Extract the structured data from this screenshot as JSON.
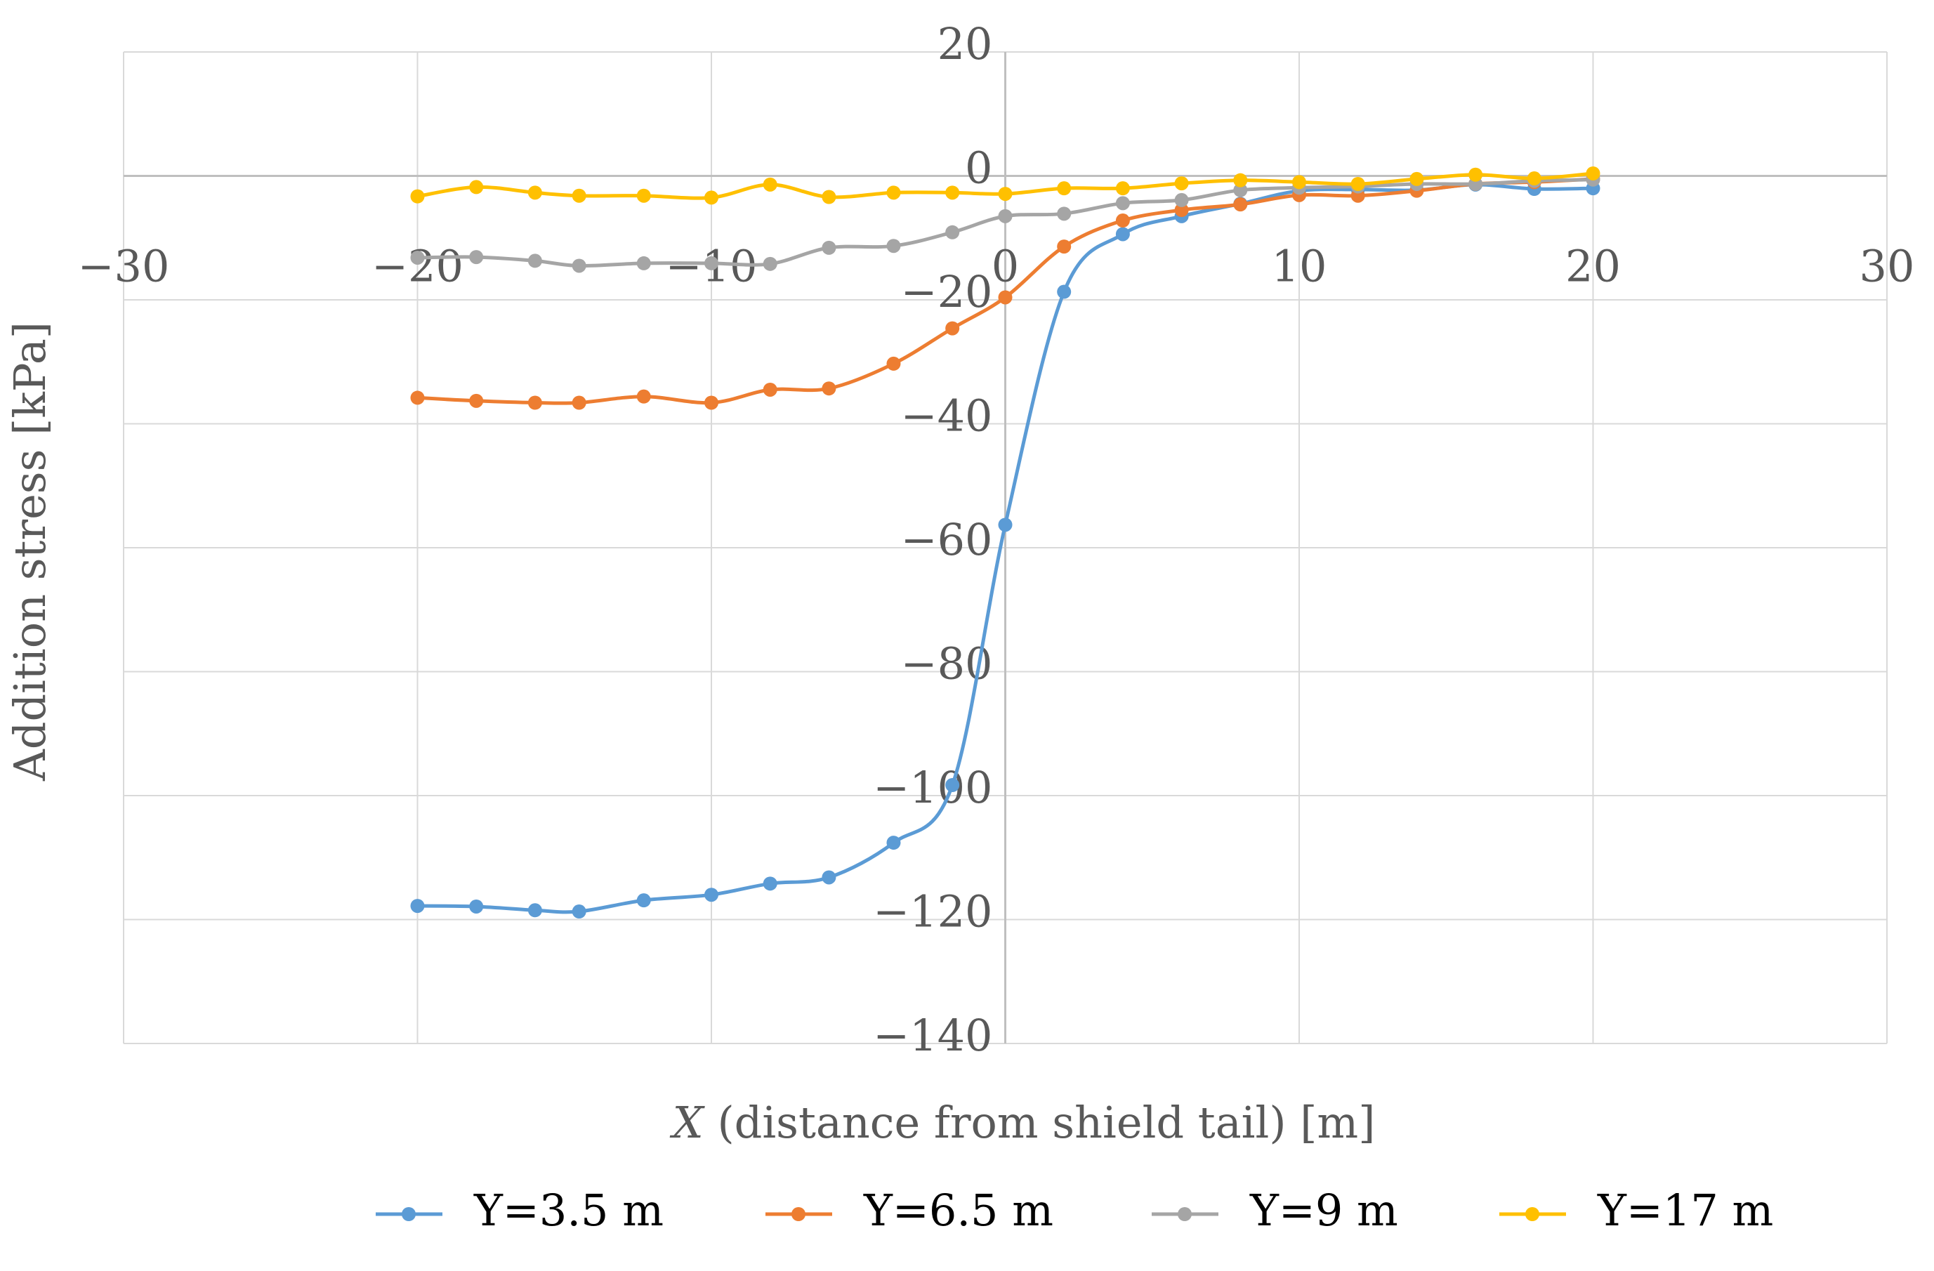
{
  "chart_data": {
    "type": "line",
    "title": "",
    "xlabel_italic": "X",
    "xlabel_rest": " (distance from shield tail) [m]",
    "ylabel": "Addition stress [kPa]",
    "xlim": [
      -30,
      30
    ],
    "ylim": [
      -140,
      20
    ],
    "x_ticks": [
      -30,
      -20,
      -10,
      0,
      10,
      20,
      30
    ],
    "y_ticks": [
      20,
      0,
      -20,
      -40,
      -60,
      -80,
      -100,
      -120,
      -140
    ],
    "x_tick_labels": [
      "−30",
      "−20",
      "−10",
      "0",
      "10",
      "20",
      "30"
    ],
    "y_tick_labels": [
      "20",
      "0",
      "−20",
      "−40",
      "−60",
      "−80",
      "−100",
      "−120",
      "−140"
    ],
    "grid": true,
    "legend_position": "bottom",
    "series": [
      {
        "name": "Y=3.5 m",
        "color": "#5B9BD5",
        "x": [
          -20,
          -18,
          -16,
          -14.5,
          -12.3,
          -10,
          -8,
          -6,
          -3.8,
          -1.8,
          0,
          2,
          4,
          6,
          8,
          10,
          12,
          14,
          16,
          18,
          20
        ],
        "y": [
          -117.8,
          -117.9,
          -118.5,
          -118.7,
          -116.9,
          -116,
          -114.2,
          -113.2,
          -107.6,
          -98.3,
          -56.3,
          -18.7,
          -9.4,
          -6.5,
          -4.5,
          -2.4,
          -2.2,
          -2.3,
          -1.4,
          -2.1,
          -2
        ]
      },
      {
        "name": "Y=6.5 m",
        "color": "#ED7D31",
        "x": [
          -20,
          -18,
          -16,
          -14.5,
          -12.3,
          -10,
          -8,
          -6,
          -3.8,
          -1.8,
          0,
          2,
          4,
          6,
          8,
          10,
          12,
          14,
          16,
          18,
          20
        ],
        "y": [
          -35.8,
          -36.3,
          -36.6,
          -36.6,
          -35.6,
          -36.6,
          -34.5,
          -34.3,
          -30.3,
          -24.6,
          -19.6,
          -11.4,
          -7.2,
          -5.5,
          -4.6,
          -3.1,
          -3.2,
          -2.4,
          -1.3,
          -1,
          -0.5
        ]
      },
      {
        "name": "Y=9 m",
        "color": "#A5A5A5",
        "x": [
          -20,
          -18,
          -16,
          -14.5,
          -12.3,
          -10,
          -8,
          -6,
          -3.8,
          -1.8,
          0,
          2,
          4,
          6,
          8,
          10,
          12,
          14,
          16,
          18,
          20
        ],
        "y": [
          -13.2,
          -13.1,
          -13.7,
          -14.5,
          -14.1,
          -14.1,
          -14.2,
          -11.6,
          -11.3,
          -9.1,
          -6.5,
          -6.1,
          -4.4,
          -3.9,
          -2.3,
          -1.9,
          -1.7,
          -1.3,
          -1.3,
          -0.8,
          -0.6
        ]
      },
      {
        "name": "Y=17 m",
        "color": "#FFC000",
        "x": [
          -20,
          -18,
          -16,
          -14.5,
          -12.3,
          -10,
          -8,
          -6,
          -3.8,
          -1.8,
          0,
          2,
          4,
          6,
          8,
          10,
          12,
          14,
          16,
          18,
          20
        ],
        "y": [
          -3.3,
          -1.8,
          -2.7,
          -3.2,
          -3.2,
          -3.5,
          -1.4,
          -3.4,
          -2.7,
          -2.7,
          -2.9,
          -2,
          -2,
          -1.2,
          -0.7,
          -1,
          -1.3,
          -0.5,
          0.2,
          -0.4,
          0.4
        ]
      }
    ]
  }
}
